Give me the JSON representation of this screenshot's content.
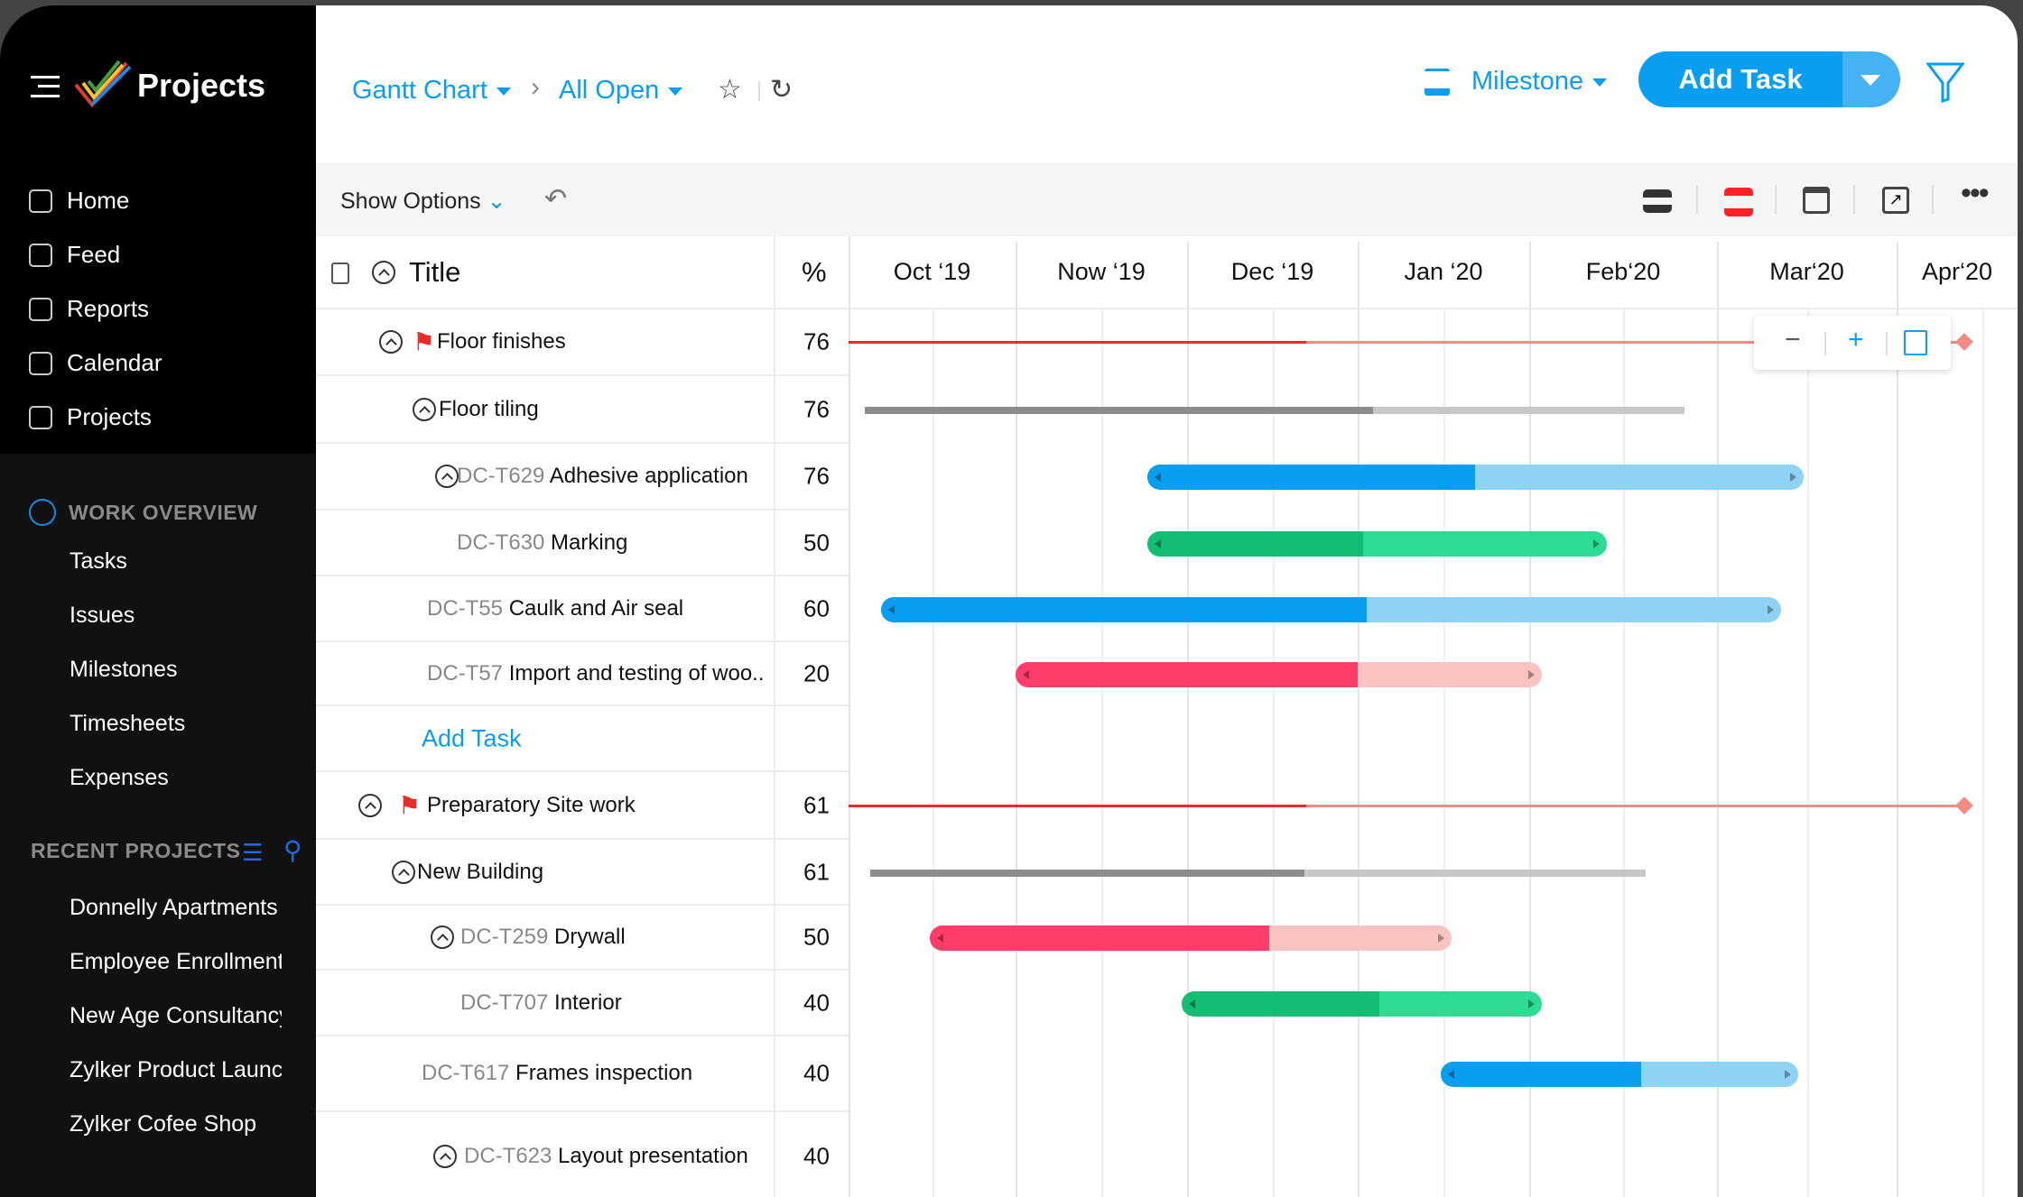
{
  "app": {
    "title": "Projects"
  },
  "sidebar": {
    "nav": [
      {
        "label": "Home",
        "icon": "home-icon"
      },
      {
        "label": "Feed",
        "icon": "feed-icon"
      },
      {
        "label": "Reports",
        "icon": "reports-icon"
      },
      {
        "label": "Calendar",
        "icon": "calendar-icon"
      },
      {
        "label": "Projects",
        "icon": "projects-icon"
      }
    ],
    "work_overview": {
      "title": "WORK OVERVIEW",
      "items": [
        "Tasks",
        "Issues",
        "Milestones",
        "Timesheets",
        "Expenses"
      ]
    },
    "recent_projects": {
      "title": "RECENT PROJECTS",
      "items": [
        "Donnelly Apartments",
        "Employee Enrollment",
        "New Age Consultancy",
        "Zylker Product Launch",
        "Zylker Cofee Shop"
      ]
    }
  },
  "header": {
    "view": "Gantt Chart",
    "filter": "All Open",
    "milestone": "Milestone",
    "add_task": "Add Task"
  },
  "toolbar": {
    "show_options": "Show Options"
  },
  "table": {
    "title_header": "Title",
    "percent_header": "%",
    "add_task": "Add Task"
  },
  "timeline": {
    "months": [
      "Oct ‘19",
      "Now ‘19",
      "Dec ‘19",
      "Jan ‘20",
      "Feb‘20",
      "Mar‘20",
      "Apr‘20"
    ]
  },
  "colors": {
    "blue": [
      "#0a9ef0",
      "#8ed3f3"
    ],
    "green": [
      "#13be74",
      "#2edb93"
    ],
    "red": [
      "#ff3d6b",
      "#f8c3c1"
    ],
    "gray": [
      "#8c8c8c",
      "#c7c7c7"
    ],
    "milestone": [
      "#ea2b2b",
      "#f48b85"
    ]
  },
  "rows": [
    {
      "id": "",
      "name": "Floor finishes",
      "percent": "76",
      "type": "milestone",
      "toggle": true,
      "bar": {
        "start": "2019-10-01",
        "end": "2020-04-13",
        "completed": 0.41,
        "color": "milestone"
      }
    },
    {
      "id": "",
      "name": "Floor tiling",
      "percent": "76",
      "type": "group",
      "toggle": true,
      "bar": {
        "start": "2019-10-04",
        "end": "2020-02-25",
        "completed": 0.62,
        "color": "gray"
      }
    },
    {
      "id": "DC-T629",
      "name": "Adhesive application",
      "percent": "76",
      "type": "task",
      "toggle": true,
      "bar": {
        "start": "2019-11-24",
        "end": "2020-03-16",
        "completed": 0.5,
        "color": "blue"
      }
    },
    {
      "id": "DC-T630",
      "name": "Marking",
      "percent": "50",
      "type": "task",
      "toggle": false,
      "bar": {
        "start": "2019-11-24",
        "end": "2020-02-13",
        "completed": 0.47,
        "color": "green"
      }
    },
    {
      "id": "DC-T55",
      "name": "Caulk and Air seal",
      "percent": "60",
      "type": "task",
      "toggle": false,
      "bar": {
        "start": "2019-10-07",
        "end": "2020-03-12",
        "completed": 0.54,
        "color": "blue"
      }
    },
    {
      "id": "DC-T57",
      "name": "Import and testing of woo..",
      "percent": "20",
      "type": "task",
      "toggle": false,
      "bar": {
        "start": "2019-11-01",
        "end": "2020-02-03",
        "completed": 0.65,
        "color": "red"
      }
    },
    {
      "type": "add"
    },
    {
      "id": "",
      "name": "Preparatory Site work",
      "percent": "61",
      "type": "milestone",
      "toggle": true,
      "bar": {
        "start": "2019-10-01",
        "end": "2020-04-13",
        "completed": 0.41,
        "color": "milestone"
      }
    },
    {
      "id": "",
      "name": "New Building",
      "percent": "61",
      "type": "group",
      "toggle": true,
      "bar": {
        "start": "2019-10-05",
        "end": "2020-02-19",
        "completed": 0.56,
        "color": "gray"
      }
    },
    {
      "id": "DC-T259",
      "name": "Drywall",
      "percent": "50",
      "type": "task",
      "toggle": true,
      "bar": {
        "start": "2019-10-16",
        "end": "2020-01-18",
        "completed": 0.65,
        "color": "red"
      }
    },
    {
      "id": "DC-T707",
      "name": "Interior",
      "percent": "40",
      "type": "task",
      "toggle": false,
      "bar": {
        "start": "2019-11-30",
        "end": "2020-02-03",
        "completed": 0.55,
        "color": "green"
      }
    },
    {
      "id": "DC-T617",
      "name": "Frames inspection",
      "percent": "40",
      "type": "task",
      "toggle": false,
      "bar": {
        "start": "2020-01-16",
        "end": "2020-03-15",
        "completed": 0.56,
        "color": "blue"
      }
    },
    {
      "id": "DC-T623",
      "name": "Layout presentation",
      "percent": "40",
      "type": "task",
      "toggle": true,
      "bar": null
    }
  ]
}
